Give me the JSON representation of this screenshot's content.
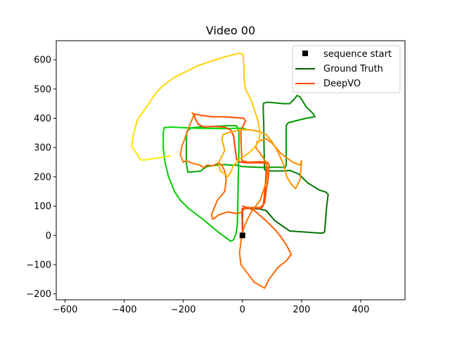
{
  "chart_data": {
    "type": "line",
    "title": "Video 00",
    "xlabel": "",
    "ylabel": "",
    "xlim": [
      -630,
      550
    ],
    "ylim": [
      -220,
      665
    ],
    "xticks": [
      -600,
      -400,
      -200,
      0,
      200,
      400
    ],
    "yticks": [
      -200,
      -100,
      0,
      100,
      200,
      300,
      400,
      500,
      600
    ],
    "grid": false,
    "legend_position": "top-right",
    "legend": [
      {
        "label": "sequence start",
        "marker": "square",
        "color": "#000000"
      },
      {
        "label": "Ground Truth",
        "line": true,
        "color": "#006400"
      },
      {
        "label": "DeepVO",
        "line": true,
        "color": "#ff4500"
      }
    ],
    "sequence_start": {
      "x": 0,
      "y": 0,
      "color": "#000000"
    },
    "ground_truth": {
      "color_start": "#006400",
      "color_end": "#00e000",
      "points": [
        [
          0,
          0
        ],
        [
          0,
          90
        ],
        [
          10,
          92
        ],
        [
          30,
          92
        ],
        [
          60,
          90
        ],
        [
          80,
          85
        ],
        [
          110,
          50
        ],
        [
          160,
          15
        ],
        [
          260,
          8
        ],
        [
          272,
          8
        ],
        [
          278,
          12
        ],
        [
          285,
          100
        ],
        [
          290,
          140
        ],
        [
          282,
          148
        ],
        [
          260,
          155
        ],
        [
          220,
          180
        ],
        [
          190,
          210
        ],
        [
          160,
          222
        ],
        [
          140,
          220
        ],
        [
          80,
          220
        ],
        [
          75,
          225
        ],
        [
          73,
          300
        ],
        [
          72,
          380
        ],
        [
          70,
          440
        ],
        [
          72,
          452
        ],
        [
          85,
          455
        ],
        [
          140,
          450
        ],
        [
          160,
          450
        ],
        [
          175,
          465
        ],
        [
          185,
          478
        ],
        [
          195,
          473
        ],
        [
          215,
          440
        ],
        [
          240,
          415
        ],
        [
          245,
          405
        ],
        [
          215,
          400
        ],
        [
          155,
          385
        ],
        [
          148,
          375
        ],
        [
          148,
          300
        ],
        [
          148,
          240
        ],
        [
          145,
          232
        ],
        [
          110,
          233
        ],
        [
          70,
          232
        ],
        [
          40,
          233
        ],
        [
          0,
          235
        ],
        [
          -20,
          240
        ],
        [
          -40,
          240
        ],
        [
          -60,
          242
        ],
        [
          -90,
          240
        ],
        [
          -120,
          235
        ],
        [
          -135,
          226
        ],
        [
          -140,
          220
        ],
        [
          -155,
          218
        ],
        [
          -185,
          216
        ],
        [
          -190,
          250
        ],
        [
          -190,
          320
        ],
        [
          -188,
          355
        ],
        [
          -175,
          367
        ],
        [
          -150,
          370
        ],
        [
          -100,
          372
        ],
        [
          -40,
          375
        ],
        [
          -20,
          374
        ],
        [
          -12,
          360
        ],
        [
          -12,
          300
        ],
        [
          -14,
          200
        ],
        [
          -16,
          100
        ],
        [
          -17,
          55
        ],
        [
          -18,
          30
        ],
        [
          -22,
          5
        ],
        [
          -30,
          -15
        ],
        [
          -40,
          -20
        ],
        [
          -80,
          10
        ],
        [
          -140,
          60
        ],
        [
          -180,
          90
        ],
        [
          -210,
          120
        ],
        [
          -230,
          150
        ],
        [
          -250,
          200
        ],
        [
          -262,
          250
        ],
        [
          -268,
          300
        ],
        [
          -268,
          350
        ],
        [
          -265,
          368
        ],
        [
          -240,
          370
        ],
        [
          -200,
          368
        ],
        [
          -150,
          366
        ],
        [
          -60,
          365
        ],
        [
          0,
          366
        ],
        [
          10,
          364
        ]
      ]
    },
    "deepvo": {
      "color_start": "#ff3300",
      "color_end": "#ffee00",
      "points": [
        [
          0,
          0
        ],
        [
          0,
          40
        ],
        [
          -2,
          80
        ],
        [
          0,
          92
        ],
        [
          20,
          95
        ],
        [
          60,
          92
        ],
        [
          70,
          100
        ],
        [
          75,
          140
        ],
        [
          78,
          180
        ],
        [
          80,
          215
        ],
        [
          82,
          245
        ],
        [
          70,
          248
        ],
        [
          40,
          248
        ],
        [
          15,
          248
        ],
        [
          -8,
          250
        ],
        [
          -20,
          260
        ],
        [
          -25,
          300
        ],
        [
          -30,
          340
        ],
        [
          -40,
          360
        ],
        [
          -60,
          370
        ],
        [
          -100,
          372
        ],
        [
          -130,
          370
        ],
        [
          -150,
          380
        ],
        [
          -160,
          400
        ],
        [
          -165,
          415
        ],
        [
          -140,
          410
        ],
        [
          -100,
          405
        ],
        [
          -60,
          405
        ],
        [
          -20,
          402
        ],
        [
          5,
          400
        ],
        [
          10,
          390
        ],
        [
          -5,
          360
        ],
        [
          -5,
          330
        ],
        [
          -3,
          280
        ],
        [
          -2,
          255
        ],
        [
          20,
          250
        ],
        [
          60,
          252
        ],
        [
          85,
          250
        ],
        [
          90,
          240
        ],
        [
          88,
          200
        ],
        [
          80,
          150
        ],
        [
          75,
          110
        ],
        [
          60,
          95
        ],
        [
          20,
          95
        ],
        [
          5,
          90
        ],
        [
          0,
          80
        ],
        [
          -20,
          75
        ],
        [
          -50,
          80
        ],
        [
          -80,
          70
        ],
        [
          -100,
          55
        ],
        [
          -105,
          70
        ],
        [
          -85,
          120
        ],
        [
          -60,
          150
        ],
        [
          -55,
          190
        ],
        [
          -60,
          220
        ],
        [
          -70,
          240
        ],
        [
          -80,
          248
        ],
        [
          -100,
          238
        ],
        [
          -120,
          240
        ],
        [
          -130,
          232
        ],
        [
          -145,
          240
        ],
        [
          -165,
          245
        ],
        [
          -190,
          255
        ],
        [
          -200,
          250
        ],
        [
          -210,
          275
        ],
        [
          -205,
          305
        ],
        [
          -195,
          330
        ],
        [
          -185,
          360
        ],
        [
          -175,
          385
        ],
        [
          -165,
          410
        ],
        [
          -170,
          420
        ]
      ],
      "points_b": [
        [
          0,
          100
        ],
        [
          10,
          97
        ],
        [
          40,
          85
        ],
        [
          80,
          50
        ],
        [
          110,
          20
        ],
        [
          130,
          -5
        ],
        [
          150,
          -35
        ],
        [
          165,
          -65
        ],
        [
          150,
          -85
        ],
        [
          120,
          -110
        ],
        [
          90,
          -150
        ],
        [
          75,
          -180
        ],
        [
          40,
          -160
        ],
        [
          10,
          -120
        ],
        [
          -5,
          -100
        ],
        [
          -10,
          -60
        ],
        [
          -5,
          -20
        ],
        [
          0,
          10
        ],
        [
          10,
          40
        ],
        [
          30,
          80
        ],
        [
          60,
          120
        ],
        [
          80,
          180
        ],
        [
          85,
          220
        ],
        [
          80,
          250
        ],
        [
          60,
          280
        ],
        [
          45,
          300
        ],
        [
          50,
          320
        ],
        [
          80,
          330
        ],
        [
          100,
          315
        ],
        [
          130,
          280
        ],
        [
          170,
          250
        ],
        [
          195,
          240
        ],
        [
          200,
          255
        ],
        [
          195,
          190
        ],
        [
          180,
          160
        ],
        [
          165,
          175
        ],
        [
          150,
          200
        ],
        [
          140,
          240
        ],
        [
          120,
          285
        ],
        [
          100,
          320
        ],
        [
          80,
          345
        ],
        [
          55,
          355
        ],
        [
          30,
          360
        ],
        [
          0,
          362
        ],
        [
          -30,
          355
        ],
        [
          -50,
          350
        ],
        [
          -65,
          345
        ],
        [
          -70,
          330
        ],
        [
          -65,
          310
        ],
        [
          -60,
          290
        ],
        [
          -70,
          270
        ],
        [
          -80,
          250
        ],
        [
          -75,
          220
        ],
        [
          -60,
          210
        ],
        [
          -50,
          200
        ],
        [
          -40,
          215
        ],
        [
          -30,
          240
        ],
        [
          -10,
          260
        ],
        [
          20,
          280
        ],
        [
          40,
          300
        ],
        [
          55,
          320
        ],
        [
          60,
          350
        ],
        [
          55,
          380
        ],
        [
          50,
          400
        ],
        [
          40,
          430
        ],
        [
          30,
          460
        ],
        [
          10,
          500
        ],
        [
          5,
          540
        ],
        [
          5,
          580
        ],
        [
          2,
          618
        ],
        [
          -10,
          622
        ],
        [
          -60,
          610
        ],
        [
          -150,
          580
        ],
        [
          -230,
          540
        ],
        [
          -270,
          510
        ],
        [
          -290,
          490
        ],
        [
          -320,
          445
        ],
        [
          -355,
          395
        ],
        [
          -370,
          340
        ],
        [
          -375,
          305
        ],
        [
          -365,
          290
        ],
        [
          -355,
          275
        ],
        [
          -345,
          258
        ],
        [
          -330,
          258
        ],
        [
          -290,
          264
        ],
        [
          -250,
          270
        ],
        [
          -245,
          272
        ]
      ]
    }
  }
}
